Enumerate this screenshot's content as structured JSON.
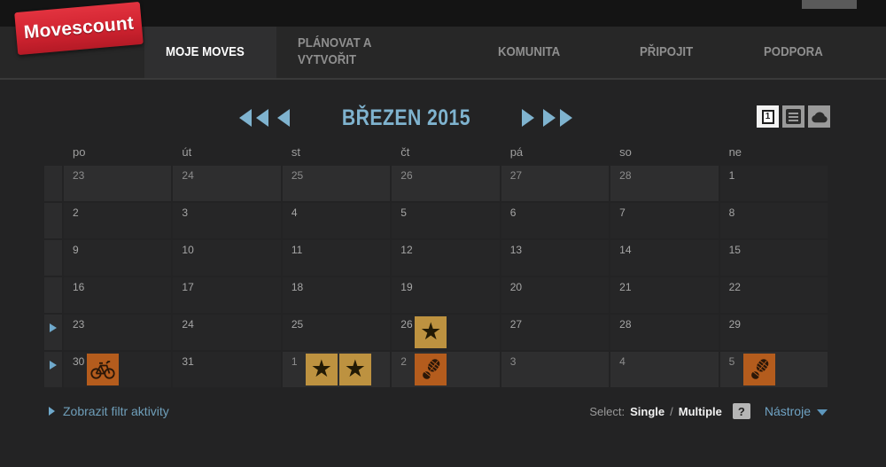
{
  "nav": {
    "logo": "Movescount",
    "items": [
      {
        "label": "MOJE MOVES",
        "active": true
      },
      {
        "label": "PLÁNOVAT A VYTVOŘIT",
        "active": false
      },
      {
        "label": "KOMUNITA",
        "active": false
      },
      {
        "label": "PŘIPOJIT",
        "active": false
      },
      {
        "label": "PODPORA",
        "active": false
      }
    ]
  },
  "view_toggles": {
    "calendar_label": "1",
    "buttons": [
      "calendar-view",
      "list-view",
      "cloud-view"
    ]
  },
  "calendar": {
    "title": "BŘEZEN 2015",
    "day_headers": [
      "po",
      "út",
      "st",
      "čt",
      "pá",
      "so",
      "ne"
    ],
    "weeks": [
      {
        "arrow": false,
        "days": [
          {
            "d": 23,
            "other": true
          },
          {
            "d": 24,
            "other": true
          },
          {
            "d": 25,
            "other": true
          },
          {
            "d": 26,
            "other": true
          },
          {
            "d": 27,
            "other": true
          },
          {
            "d": 28,
            "other": true
          },
          {
            "d": 1,
            "other": false
          }
        ]
      },
      {
        "arrow": false,
        "days": [
          {
            "d": 2
          },
          {
            "d": 3
          },
          {
            "d": 4
          },
          {
            "d": 5
          },
          {
            "d": 6
          },
          {
            "d": 7
          },
          {
            "d": 8
          }
        ]
      },
      {
        "arrow": false,
        "days": [
          {
            "d": 9
          },
          {
            "d": 10
          },
          {
            "d": 11
          },
          {
            "d": 12
          },
          {
            "d": 13
          },
          {
            "d": 14
          },
          {
            "d": 15
          }
        ]
      },
      {
        "arrow": false,
        "days": [
          {
            "d": 16
          },
          {
            "d": 17
          },
          {
            "d": 18
          },
          {
            "d": 19
          },
          {
            "d": 20
          },
          {
            "d": 21
          },
          {
            "d": 22
          }
        ]
      },
      {
        "arrow": true,
        "days": [
          {
            "d": 23
          },
          {
            "d": 24
          },
          {
            "d": 25
          },
          {
            "d": 26,
            "icons": [
              "star"
            ]
          },
          {
            "d": 27
          },
          {
            "d": 28
          },
          {
            "d": 29
          }
        ]
      },
      {
        "arrow": true,
        "days": [
          {
            "d": 30,
            "icons": [
              "bike"
            ]
          },
          {
            "d": 31
          },
          {
            "d": 1,
            "other": true,
            "icons": [
              "star",
              "star"
            ]
          },
          {
            "d": 2,
            "other": true,
            "icons": [
              "footprint"
            ]
          },
          {
            "d": 3,
            "other": true
          },
          {
            "d": 4,
            "other": true
          },
          {
            "d": 5,
            "other": true,
            "icons": [
              "footprint"
            ]
          }
        ]
      }
    ]
  },
  "footer": {
    "filter_label": "Zobrazit filtr aktivity",
    "select_label": "Select:",
    "single_label": "Single",
    "separator": "/",
    "multiple_label": "Multiple",
    "help_label": "?",
    "tools_label": "Nástroje"
  },
  "icons": {
    "star": "star-icon",
    "bike": "bicycle-icon",
    "footprint": "footprint-icon",
    "prev_year": "double-left-arrow-icon",
    "prev_month": "left-arrow-icon",
    "next_month": "right-arrow-icon",
    "next_year": "double-right-arrow-icon",
    "week_expand": "right-triangle-icon",
    "tools_caret": "caret-down-icon"
  },
  "colors": {
    "accent_blue": "#7fb3cf",
    "link_blue": "#6f9fba",
    "star_bg": "#bd9240",
    "sport_bg": "#b45c1d",
    "logo_red": "#d02330",
    "page_bg": "#232324",
    "cell_bg": "#262627",
    "cell_other_bg": "#2e2e2f"
  }
}
